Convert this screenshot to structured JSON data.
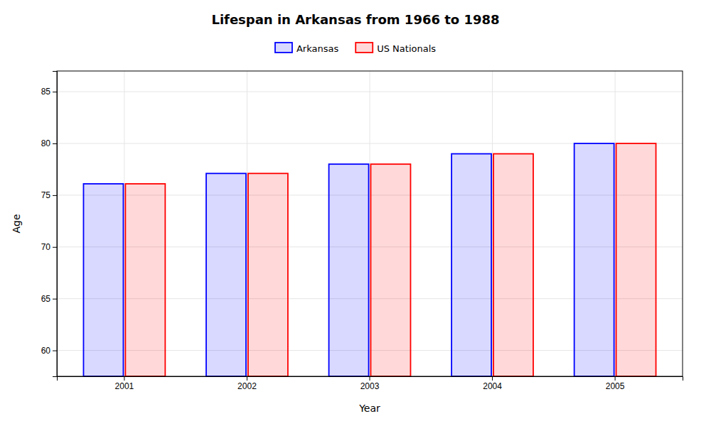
{
  "chart_data": {
    "type": "bar",
    "title": "Lifespan in Arkansas from 1966 to 1988",
    "x_label": "Year",
    "y_label": "Age",
    "categories": [
      "2001",
      "2002",
      "2003",
      "2004",
      "2005"
    ],
    "series": [
      {
        "name": "Arkansas",
        "color": "#0000ff",
        "values": [
          76.1,
          77.1,
          78.0,
          79.0,
          80.0
        ]
      },
      {
        "name": "US Nationals",
        "color": "#ff0000",
        "values": [
          76.1,
          77.1,
          78.0,
          79.0,
          80.0
        ]
      }
    ],
    "ylim": [
      57.5,
      87
    ],
    "yticks": [
      60,
      65,
      70,
      75,
      80,
      85
    ],
    "grid": true,
    "legend": "top"
  }
}
